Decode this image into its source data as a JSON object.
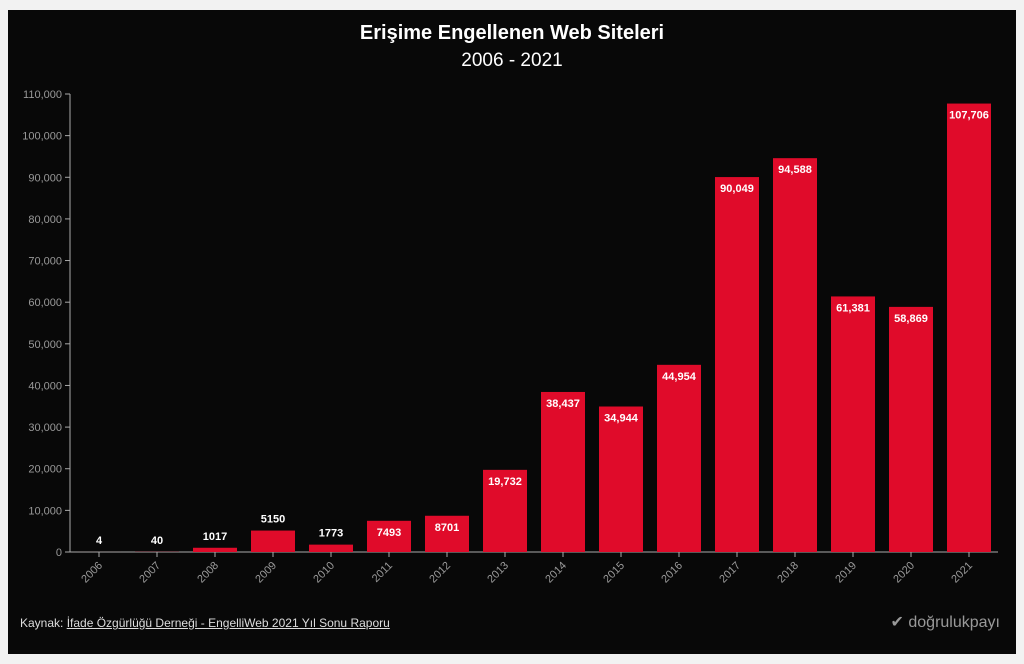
{
  "chart_data": {
    "type": "bar",
    "title": "Erişime Engellenen Web Siteleri",
    "subtitle": "2006 - 2021",
    "categories": [
      "2006",
      "2007",
      "2008",
      "2009",
      "2010",
      "2011",
      "2012",
      "2013",
      "2014",
      "2015",
      "2016",
      "2017",
      "2018",
      "2019",
      "2020",
      "2021"
    ],
    "values": [
      4,
      40,
      1017,
      5150,
      1773,
      7493,
      8701,
      19732,
      38437,
      34944,
      44954,
      90049,
      94588,
      61381,
      58869,
      107706
    ],
    "labels": [
      "4",
      "40",
      "1017",
      "5150",
      "1773",
      "7493",
      "8701",
      "19,732",
      "38,437",
      "34,944",
      "44,954",
      "90,049",
      "94,588",
      "61,381",
      "58,869",
      "107,706"
    ],
    "yticks": [
      0,
      10000,
      20000,
      30000,
      40000,
      50000,
      60000,
      70000,
      80000,
      90000,
      100000,
      110000
    ],
    "ytick_labels": [
      "0",
      "10,000",
      "20,000",
      "30,000",
      "40,000",
      "50,000",
      "60,000",
      "70,000",
      "80,000",
      "90,000",
      "100,000",
      "110,000"
    ],
    "ylim": [
      0,
      110000
    ],
    "xlabel": "",
    "ylabel": "",
    "bar_color": "#e00b2a"
  },
  "footer": {
    "source_prefix": "Kaynak:",
    "source_link": "İfade Özgürlüğü Derneği - EngelliWeb 2021 Yıl Sonu Raporu",
    "logo": "doğrulukpayı"
  }
}
